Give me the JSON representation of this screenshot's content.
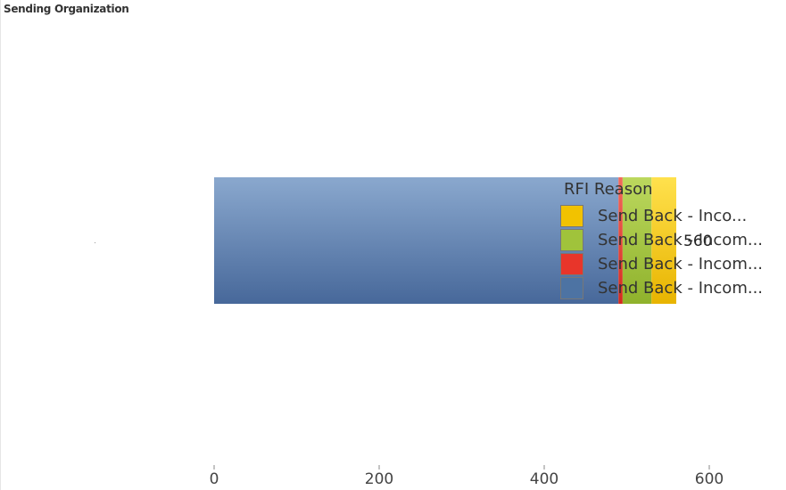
{
  "chart_title": "Sending Organization",
  "chart_data": {
    "type": "bar",
    "orientation": "horizontal",
    "stacked": true,
    "categories": [
      ""
    ],
    "series": [
      {
        "name": "Send Back - Incom...",
        "values": [
          490
        ],
        "color": "#4d73a3"
      },
      {
        "name": "Send Back - Incom...",
        "values": [
          5
        ],
        "color": "#e8352a"
      },
      {
        "name": "Send Back - Incom...",
        "values": [
          35
        ],
        "color": "#a0c33b"
      },
      {
        "name": "Send Back - Inco...",
        "values": [
          30
        ],
        "color": "#f2c200"
      }
    ],
    "total_label": "560",
    "xlim": [
      0,
      600
    ],
    "x_ticks": [
      "0",
      "200",
      "400",
      "600"
    ],
    "grid": false,
    "legend_position": "right"
  },
  "legend": {
    "title": "RFI Reason",
    "items": [
      {
        "label": "Send Back - Inco...",
        "color": "#f2c200"
      },
      {
        "label": "Send Back - Incom...",
        "color": "#a0c33b"
      },
      {
        "label": "Send Back - Incom...",
        "color": "#e8352a"
      },
      {
        "label": "Send Back - Incom...",
        "color": "#4d73a3"
      }
    ]
  }
}
